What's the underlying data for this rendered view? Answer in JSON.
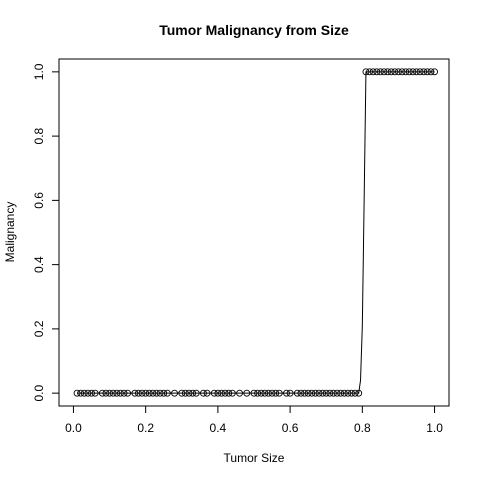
{
  "chart_data": {
    "type": "scatter",
    "title": "Tumor Malignancy from Size",
    "xlabel": "Tumor Size",
    "ylabel": "Malignancy",
    "xlim": [
      -0.04,
      1.04
    ],
    "ylim": [
      -0.04,
      1.04
    ],
    "x_ticks": [
      0.0,
      0.2,
      0.4,
      0.6,
      0.8,
      1.0
    ],
    "x_tick_labels": [
      "0.0",
      "0.2",
      "0.4",
      "0.6",
      "0.8",
      "1.0"
    ],
    "y_ticks": [
      0.0,
      0.2,
      0.4,
      0.6,
      0.8,
      1.0
    ],
    "y_tick_labels": [
      "0.0",
      "0.2",
      "0.4",
      "0.6",
      "0.8",
      "1.0"
    ],
    "grid": false,
    "marker": "open-circle",
    "series": [
      {
        "type": "points",
        "x": [
          0.01,
          0.02,
          0.03,
          0.04,
          0.05,
          0.06,
          0.08,
          0.09,
          0.1,
          0.11,
          0.12,
          0.13,
          0.14,
          0.15,
          0.17,
          0.18,
          0.19,
          0.2,
          0.21,
          0.22,
          0.23,
          0.24,
          0.25,
          0.26,
          0.28,
          0.3,
          0.31,
          0.32,
          0.33,
          0.34,
          0.36,
          0.37,
          0.39,
          0.4,
          0.41,
          0.42,
          0.43,
          0.44,
          0.46,
          0.48,
          0.5,
          0.51,
          0.52,
          0.53,
          0.54,
          0.55,
          0.56,
          0.57,
          0.59,
          0.6,
          0.62,
          0.63,
          0.64,
          0.65,
          0.66,
          0.67,
          0.68,
          0.69,
          0.7,
          0.71,
          0.72,
          0.73,
          0.74,
          0.75,
          0.76,
          0.77,
          0.78,
          0.79,
          0.81,
          0.82,
          0.83,
          0.84,
          0.85,
          0.86,
          0.87,
          0.88,
          0.89,
          0.9,
          0.91,
          0.92,
          0.93,
          0.94,
          0.95,
          0.96,
          0.97,
          0.98,
          0.99,
          1.0
        ],
        "y": [
          0,
          0,
          0,
          0,
          0,
          0,
          0,
          0,
          0,
          0,
          0,
          0,
          0,
          0,
          0,
          0,
          0,
          0,
          0,
          0,
          0,
          0,
          0,
          0,
          0,
          0,
          0,
          0,
          0,
          0,
          0,
          0,
          0,
          0,
          0,
          0,
          0,
          0,
          0,
          0,
          0,
          0,
          0,
          0,
          0,
          0,
          0,
          0,
          0,
          0,
          0,
          0,
          0,
          0,
          0,
          0,
          0,
          0,
          0,
          0,
          0,
          0,
          0,
          0,
          0,
          0,
          0,
          0,
          1,
          1,
          1,
          1,
          1,
          1,
          1,
          1,
          1,
          1,
          1,
          1,
          1,
          1,
          1,
          1,
          1,
          1,
          1,
          1
        ]
      },
      {
        "type": "line",
        "x": [
          0.01,
          0.79,
          0.795,
          0.8,
          0.805,
          0.81,
          1.0
        ],
        "y": [
          0.0,
          0.0,
          0.04,
          0.21,
          0.6,
          1.0,
          1.0
        ]
      }
    ]
  }
}
